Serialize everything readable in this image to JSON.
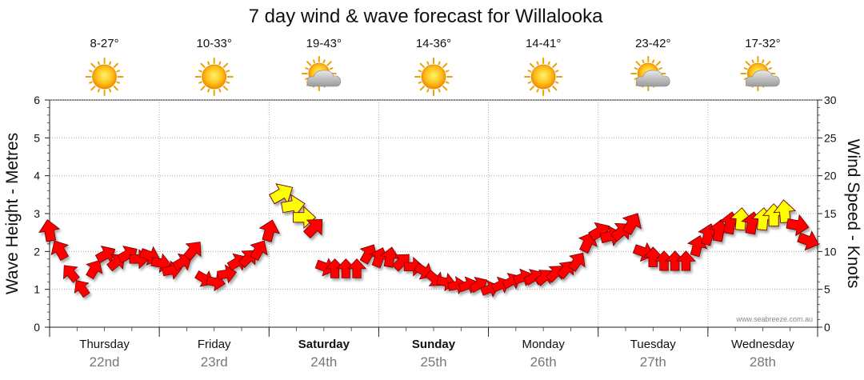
{
  "chart_data": {
    "type": "line",
    "title": "7 day wind & wave forecast for Willalooka",
    "ylabel_left": "Wave Height - Metres",
    "ylabel_right": "Wind Speed - Knots",
    "ylim_left": [
      0,
      6
    ],
    "ylim_right": [
      0,
      30
    ],
    "yticks_left": [
      "0",
      "1",
      "2",
      "3",
      "4",
      "5",
      "6"
    ],
    "yticks_right": [
      "0",
      "5",
      "10",
      "15",
      "20",
      "25",
      "30"
    ],
    "credit": "www.seabreeze.com.au",
    "days": [
      {
        "name": "Thursday",
        "date": "22nd",
        "temp": "8-27°",
        "icon": "sun-icon",
        "bold": false
      },
      {
        "name": "Friday",
        "date": "23rd",
        "temp": "10-33°",
        "icon": "sun-icon",
        "bold": false
      },
      {
        "name": "Saturday",
        "date": "24th",
        "temp": "19-43°",
        "icon": "sun-cloud-icon",
        "bold": true
      },
      {
        "name": "Sunday",
        "date": "25th",
        "temp": "14-36°",
        "icon": "sun-icon",
        "bold": true
      },
      {
        "name": "Monday",
        "date": "26th",
        "temp": "14-41°",
        "icon": "sun-icon",
        "bold": false
      },
      {
        "name": "Tuesday",
        "date": "27th",
        "temp": "23-42°",
        "icon": "sun-cloud-icon",
        "bold": false
      },
      {
        "name": "Wednesday",
        "date": "28th",
        "temp": "17-32°",
        "icon": "sun-cloud-icon",
        "bold": false
      }
    ],
    "wind_series": {
      "name": "Wind Speed - Knots",
      "x_unit": "days from Thursday 00:00",
      "x": [
        0.0,
        0.1,
        0.2,
        0.3,
        0.4,
        0.5,
        0.6,
        0.7,
        0.8,
        0.9,
        1.0,
        1.1,
        1.2,
        1.3,
        1.4,
        1.5,
        1.6,
        1.7,
        1.8,
        1.9,
        2.0,
        2.1,
        2.2,
        2.3,
        2.4,
        2.5,
        2.6,
        2.7,
        2.8,
        2.9,
        3.0,
        3.1,
        3.2,
        3.3,
        3.4,
        3.5,
        3.6,
        3.7,
        3.8,
        3.9,
        4.0,
        4.1,
        4.2,
        4.3,
        4.4,
        4.5,
        4.6,
        4.7,
        4.8,
        4.9,
        5.0,
        5.1,
        5.2,
        5.3,
        5.4,
        5.5,
        5.6,
        5.7,
        5.8,
        5.9,
        6.0,
        6.1,
        6.2,
        6.3,
        6.4,
        6.5,
        6.6,
        6.7,
        6.8,
        6.9
      ],
      "values": [
        12.5,
        10,
        7,
        5,
        7.5,
        9.5,
        8.5,
        9.5,
        9,
        9.5,
        8.5,
        7.5,
        8.5,
        10,
        6.5,
        6,
        7,
        8.5,
        9,
        10,
        12.5,
        17.5,
        16,
        14.5,
        13,
        8,
        7.5,
        7.5,
        7.5,
        9.5,
        9,
        9,
        8.5,
        8,
        7.5,
        6.5,
        6,
        5.5,
        5.5,
        5.5,
        5,
        5.5,
        6,
        6.5,
        6.5,
        6.5,
        7,
        7.5,
        8.5,
        11,
        12.5,
        12,
        12.5,
        13.5,
        10,
        9,
        8.5,
        8.5,
        8.5,
        10.5,
        12,
        12.5,
        13.5,
        14,
        13.5,
        14,
        14.5,
        15,
        13.5,
        11.5
      ],
      "direction_deg": [
        350,
        330,
        320,
        325,
        30,
        60,
        50,
        60,
        90,
        110,
        100,
        80,
        60,
        40,
        120,
        100,
        80,
        60,
        45,
        30,
        15,
        60,
        80,
        90,
        45,
        110,
        0,
        0,
        0,
        30,
        20,
        10,
        45,
        90,
        120,
        130,
        100,
        80,
        70,
        60,
        70,
        65,
        60,
        70,
        60,
        50,
        45,
        40,
        35,
        25,
        60,
        75,
        50,
        30,
        110,
        0,
        0,
        0,
        0,
        15,
        15,
        10,
        10,
        5,
        10,
        5,
        0,
        355,
        100,
        110
      ],
      "low_color": "#ff0000",
      "high_color": "#ffff00"
    }
  }
}
